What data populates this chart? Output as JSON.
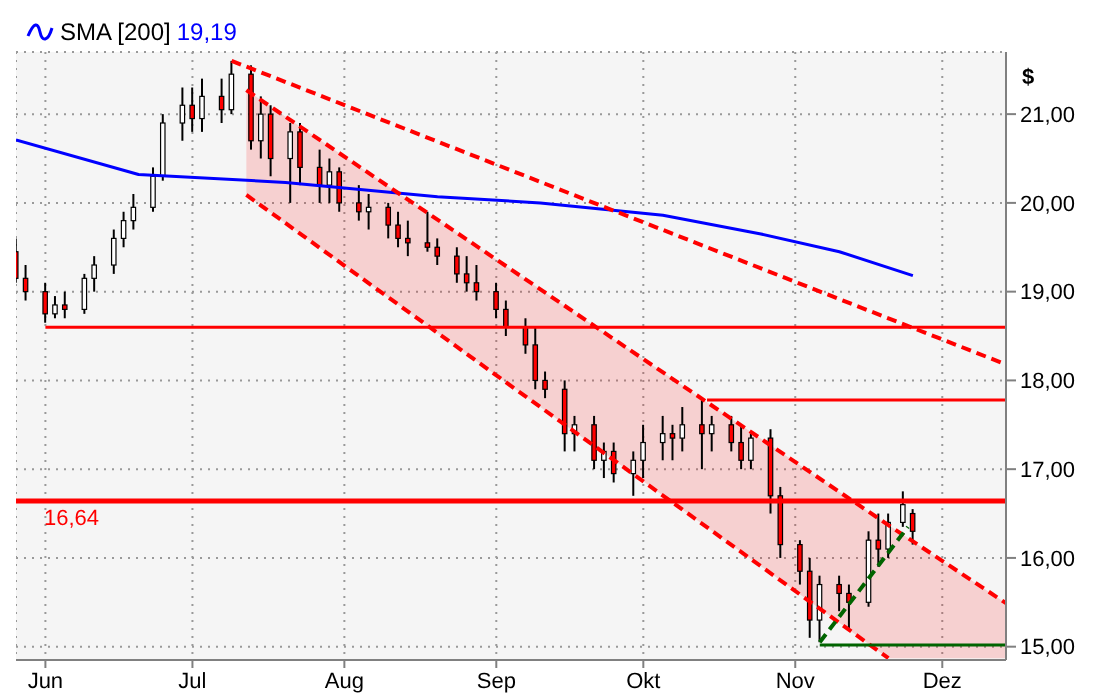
{
  "chart_data": {
    "type": "candlestick",
    "ylabel": "$",
    "annotations": [
      "19,19"
    ],
    "x": [
      "--05-26",
      "--05-28",
      "--06-01",
      "--06-03",
      "--06-05",
      "--06-09",
      "--06-11",
      "--06-15",
      "--06-17",
      "--06-19",
      "--06-23",
      "--06-25",
      "--06-29",
      "--07-01",
      "--07-03",
      "--07-07",
      "--07-09",
      "--07-13",
      "--07-15",
      "--07-17",
      "--07-21",
      "--07-23",
      "--07-27",
      "--07-29",
      "--07-31",
      "--08-04",
      "--08-06",
      "--08-10",
      "--08-12",
      "--08-14",
      "--08-18",
      "--08-20",
      "--08-24",
      "--08-26",
      "--08-28",
      "--09-01",
      "--09-03",
      "--09-07",
      "--09-09",
      "--09-11",
      "--09-15",
      "--09-17",
      "--09-21",
      "--09-23",
      "--09-25",
      "--09-29",
      "--10-01",
      "--10-05",
      "--10-07",
      "--10-09",
      "--10-13",
      "--10-15",
      "--10-19",
      "--10-21",
      "--10-23",
      "--10-27",
      "--10-29",
      "--11-02",
      "--11-04",
      "--11-06",
      "--11-10",
      "--11-12",
      "--11-16",
      "--11-18",
      "--11-20",
      "--11-23",
      "--11-25"
    ],
    "ohlc": [
      [
        19.45,
        19.6,
        19.1,
        19.15
      ],
      [
        19.15,
        19.3,
        18.9,
        19.0
      ],
      [
        19.0,
        19.1,
        18.65,
        18.75
      ],
      [
        18.75,
        18.95,
        18.7,
        18.85
      ],
      [
        18.85,
        19.0,
        18.7,
        18.8
      ],
      [
        18.8,
        19.2,
        18.75,
        19.15
      ],
      [
        19.15,
        19.4,
        19.0,
        19.3
      ],
      [
        19.3,
        19.7,
        19.2,
        19.6
      ],
      [
        19.6,
        19.9,
        19.5,
        19.8
      ],
      [
        19.8,
        20.1,
        19.7,
        19.95
      ],
      [
        19.95,
        20.4,
        19.9,
        20.3
      ],
      [
        20.3,
        21.0,
        20.25,
        20.9
      ],
      [
        20.9,
        21.3,
        20.7,
        21.1
      ],
      [
        21.1,
        21.3,
        20.8,
        20.95
      ],
      [
        20.95,
        21.4,
        20.8,
        21.2
      ],
      [
        21.2,
        21.4,
        20.9,
        21.05
      ],
      [
        21.05,
        21.6,
        21.0,
        21.45
      ],
      [
        21.45,
        21.55,
        20.6,
        20.7
      ],
      [
        20.7,
        21.2,
        20.5,
        21.0
      ],
      [
        21.0,
        21.1,
        20.3,
        20.5
      ],
      [
        20.5,
        20.9,
        20.0,
        20.8
      ],
      [
        20.8,
        20.9,
        20.2,
        20.4
      ],
      [
        20.4,
        20.6,
        20.0,
        20.2
      ],
      [
        20.2,
        20.5,
        20.0,
        20.35
      ],
      [
        20.35,
        20.4,
        19.9,
        20.0
      ],
      [
        20.0,
        20.2,
        19.8,
        19.9
      ],
      [
        19.9,
        20.1,
        19.7,
        19.95
      ],
      [
        19.95,
        20.0,
        19.6,
        19.75
      ],
      [
        19.75,
        19.9,
        19.5,
        19.6
      ],
      [
        19.6,
        19.8,
        19.4,
        19.55
      ],
      [
        19.55,
        19.9,
        19.45,
        19.5
      ],
      [
        19.5,
        19.6,
        19.3,
        19.4
      ],
      [
        19.4,
        19.5,
        19.1,
        19.2
      ],
      [
        19.2,
        19.4,
        19.0,
        19.1
      ],
      [
        19.1,
        19.3,
        18.9,
        19.0
      ],
      [
        19.0,
        19.1,
        18.7,
        18.8
      ],
      [
        18.8,
        18.9,
        18.5,
        18.6
      ],
      [
        18.6,
        18.7,
        18.3,
        18.4
      ],
      [
        18.4,
        18.6,
        17.9,
        18.0
      ],
      [
        18.0,
        18.1,
        17.8,
        17.9
      ],
      [
        17.9,
        18.0,
        17.2,
        17.4
      ],
      [
        17.4,
        17.6,
        17.2,
        17.5
      ],
      [
        17.5,
        17.6,
        17.0,
        17.1
      ],
      [
        17.1,
        17.3,
        16.9,
        17.2
      ],
      [
        17.2,
        17.3,
        16.85,
        16.95
      ],
      [
        16.95,
        17.2,
        16.7,
        17.1
      ],
      [
        17.1,
        17.5,
        16.9,
        17.3
      ],
      [
        17.3,
        17.6,
        17.1,
        17.4
      ],
      [
        17.4,
        17.5,
        17.1,
        17.35
      ],
      [
        17.35,
        17.7,
        17.2,
        17.5
      ],
      [
        17.5,
        17.8,
        17.0,
        17.4
      ],
      [
        17.4,
        17.6,
        17.2,
        17.5
      ],
      [
        17.5,
        17.6,
        17.2,
        17.3
      ],
      [
        17.3,
        17.5,
        17.0,
        17.1
      ],
      [
        17.1,
        17.4,
        17.0,
        17.35
      ],
      [
        17.35,
        17.45,
        16.5,
        16.7
      ],
      [
        16.7,
        16.8,
        16.0,
        16.15
      ],
      [
        16.15,
        16.2,
        15.7,
        15.85
      ],
      [
        15.85,
        16.0,
        15.1,
        15.3
      ],
      [
        15.3,
        15.8,
        15.05,
        15.7
      ],
      [
        15.7,
        15.8,
        15.4,
        15.6
      ],
      [
        15.6,
        15.7,
        15.2,
        15.5
      ],
      [
        15.5,
        16.3,
        15.45,
        16.2
      ],
      [
        16.2,
        16.5,
        15.9,
        16.1
      ],
      [
        16.1,
        16.5,
        16.0,
        16.4
      ],
      [
        16.4,
        16.75,
        16.35,
        16.6
      ],
      [
        16.5,
        16.55,
        16.15,
        16.3
      ]
    ],
    "series": [
      {
        "name": "SMA [200]",
        "type": "line",
        "color": "#0000ff",
        "x": [
          "--05-26",
          "--06-20",
          "--07-20",
          "--08-20",
          "--09-10",
          "--10-05",
          "--10-25",
          "--11-10",
          "--11-25"
        ],
        "values": [
          20.71,
          20.32,
          20.23,
          20.07,
          20.0,
          19.86,
          19.65,
          19.45,
          19.18
        ]
      },
      {
        "type": "line",
        "color": "#ff0000",
        "line_style": "dashed",
        "x": [
          "--07-12",
          "--11-20",
          "--12-14"
        ],
        "values": [
          21.27,
          16.37,
          15.49
        ],
        "lower": [
          20.09,
          14.87,
          14.87
        ],
        "upper": [
          21.27,
          16.37,
          15.49
        ]
      },
      {
        "type": "line",
        "color": "#ff0000",
        "line_style": "dashed",
        "x": [
          "--07-12",
          "--11-20"
        ],
        "values": [
          20.09,
          14.87
        ]
      },
      {
        "type": "line",
        "color": "#ff0000",
        "line_style": "dashed",
        "x": [
          "--07-09",
          "--12-14"
        ],
        "values": [
          21.6,
          18.18
        ]
      },
      {
        "type": "line",
        "color": "#ff0000",
        "x": [
          "--06-01",
          "--12-14"
        ],
        "values": [
          18.6,
          18.6
        ]
      },
      {
        "type": "line",
        "color": "#ff0000",
        "x": [
          "--10-14",
          "--12-14"
        ],
        "values": [
          17.78,
          17.78
        ]
      },
      {
        "type": "line",
        "color": "#006400",
        "x": [
          "--11-06",
          "--12-14"
        ],
        "values": [
          15.02,
          15.02
        ]
      },
      {
        "type": "line",
        "color": "#006400",
        "line_style": "dashed",
        "x": [
          "--11-06",
          "--11-24"
        ],
        "values": [
          15.05,
          16.35
        ]
      }
    ],
    "ref_lines": [
      {
        "axis": "y",
        "value": 16.64,
        "label": "16,64",
        "color": "#ff0000"
      }
    ],
    "xlim": [
      "--05-26",
      "--12-14"
    ],
    "xticks": [
      {
        "value": "--06-01",
        "label": "Jun"
      },
      {
        "value": "--07-01",
        "label": "Jul"
      },
      {
        "value": "--08-01",
        "label": "Aug"
      },
      {
        "value": "--09-01",
        "label": "Sep"
      },
      {
        "value": "--10-01",
        "label": "Okt"
      },
      {
        "value": "--11-01",
        "label": "Nov"
      },
      {
        "value": "--12-01",
        "label": "Dez"
      }
    ],
    "ylim": [
      14.85,
      21.7
    ],
    "yticks": [
      {
        "value": 15,
        "label": "15,00"
      },
      {
        "value": 16,
        "label": "16,00"
      },
      {
        "value": 17,
        "label": "17,00"
      },
      {
        "value": 18,
        "label": "18,00"
      },
      {
        "value": 19,
        "label": "19,00"
      },
      {
        "value": 20,
        "label": "20,00"
      },
      {
        "value": 21,
        "label": "21,00"
      }
    ],
    "grid": true,
    "legend": "top left"
  }
}
